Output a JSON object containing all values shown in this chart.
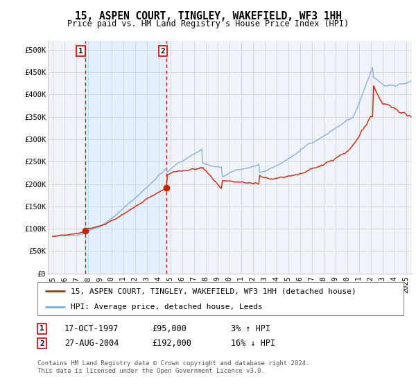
{
  "title": "15, ASPEN COURT, TINGLEY, WAKEFIELD, WF3 1HH",
  "subtitle": "Price paid vs. HM Land Registry's House Price Index (HPI)",
  "ylabel_ticks": [
    "£0",
    "£50K",
    "£100K",
    "£150K",
    "£200K",
    "£250K",
    "£300K",
    "£350K",
    "£400K",
    "£450K",
    "£500K"
  ],
  "ytick_values": [
    0,
    50000,
    100000,
    150000,
    200000,
    250000,
    300000,
    350000,
    400000,
    450000,
    500000
  ],
  "ylim": [
    0,
    520000
  ],
  "xlim_start": 1994.6,
  "xlim_end": 2025.5,
  "sale1_year": 1997.8,
  "sale1_price": 95000,
  "sale2_year": 2004.65,
  "sale2_price": 192000,
  "shade_color": "#ddeeff",
  "vline_color": "#cc0000",
  "hpi_line_color": "#7aaad0",
  "price_line_color": "#cc2200",
  "marker_color": "#cc2200",
  "legend_entry1": "15, ASPEN COURT, TINGLEY, WAKEFIELD, WF3 1HH (detached house)",
  "legend_entry2": "HPI: Average price, detached house, Leeds",
  "annot1_date": "17-OCT-1997",
  "annot1_price": "£95,000",
  "annot1_hpi": "3% ↑ HPI",
  "annot2_date": "27-AUG-2004",
  "annot2_price": "£192,000",
  "annot2_hpi": "16% ↓ HPI",
  "footer": "Contains HM Land Registry data © Crown copyright and database right 2024.\nThis data is licensed under the Open Government Licence v3.0.",
  "bg_color": "#ffffff",
  "grid_color": "#cccccc",
  "title_fontsize": 10.5,
  "subtitle_fontsize": 8.5,
  "tick_fontsize": 7.5,
  "legend_fontsize": 8,
  "annot_fontsize": 8.5,
  "footer_fontsize": 6.5
}
